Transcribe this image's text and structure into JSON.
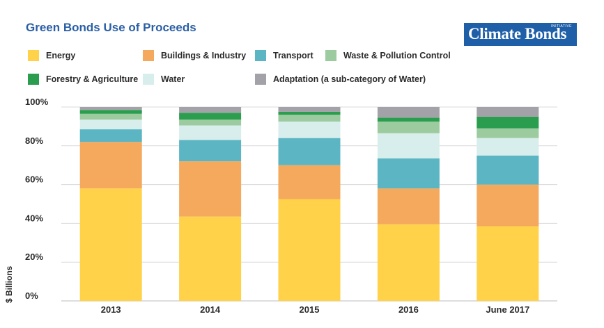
{
  "title": "Green Bonds Use of Proceeds",
  "logo": {
    "text": "Climate Bonds",
    "tag": "INITIATIVE",
    "bg": "#1f5fa8"
  },
  "legend": [
    {
      "label": "Energy",
      "color": "#ffd24a"
    },
    {
      "label": "Buildings & Industry",
      "color": "#f5a95d"
    },
    {
      "label": "Transport",
      "color": "#5bb5c3"
    },
    {
      "label": "Waste & Pollution Control",
      "color": "#9ccb9f"
    },
    {
      "label": "Forestry & Agriculture",
      "color": "#2a9e4e"
    },
    {
      "label": "Water",
      "color": "#d8eeec"
    },
    {
      "label": "Adaptation (a sub-category of Water)",
      "color": "#a3a2a8"
    }
  ],
  "chart_data": {
    "type": "bar",
    "stacked": true,
    "title": "Green Bonds Use of Proceeds",
    "ylabel": "$ Billions",
    "xlabel": "",
    "ylim": [
      0,
      100
    ],
    "yticks": [
      "0%",
      "20%",
      "40%",
      "60%",
      "80%",
      "100%"
    ],
    "grid": true,
    "legend_position": "top",
    "categories": [
      "2013",
      "2014",
      "2015",
      "2016",
      "June 2017"
    ],
    "series": [
      {
        "name": "Energy",
        "color": "#ffd24a",
        "values": [
          58,
          43.5,
          52.5,
          39.5,
          38.5
        ]
      },
      {
        "name": "Buildings & Industry",
        "color": "#f5a95d",
        "values": [
          24,
          28.5,
          17.5,
          18.5,
          21.5
        ]
      },
      {
        "name": "Transport",
        "color": "#5bb5c3",
        "values": [
          6.5,
          11,
          14,
          15.5,
          15
        ]
      },
      {
        "name": "Water",
        "color": "#d8eeec",
        "values": [
          5,
          7.5,
          8.5,
          13,
          9
        ]
      },
      {
        "name": "Waste & Pollution Control",
        "color": "#9ccb9f",
        "values": [
          3,
          3,
          3.5,
          6,
          5
        ]
      },
      {
        "name": "Forestry & Agriculture",
        "color": "#2a9e4e",
        "values": [
          2,
          3.5,
          1.5,
          2,
          6
        ]
      },
      {
        "name": "Adaptation (a sub-category of Water)",
        "color": "#a3a2a8",
        "values": [
          1.5,
          3,
          2.5,
          5.5,
          5
        ]
      }
    ]
  }
}
